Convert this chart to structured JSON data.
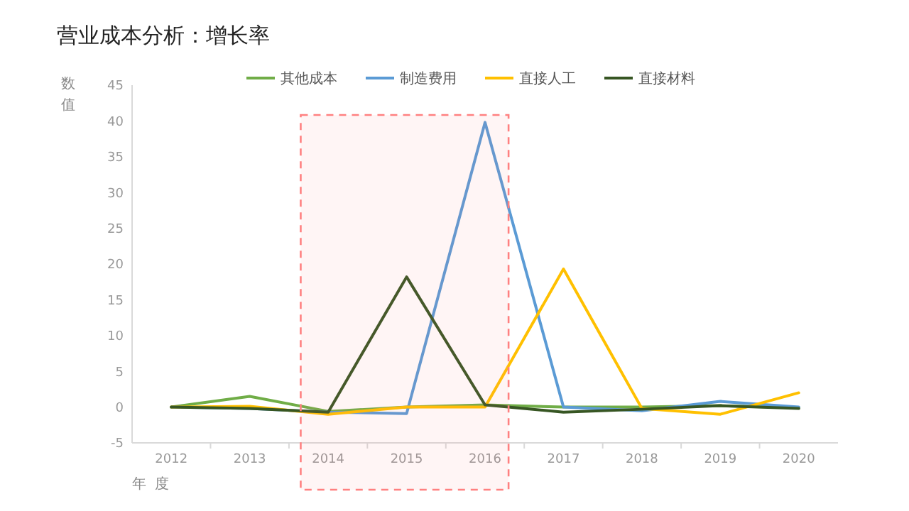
{
  "chart_data": {
    "type": "line",
    "title": "营业成本分析：增长率",
    "xlabel": "年度",
    "ylabel": "数值",
    "x": [
      2012,
      2013,
      2014,
      2015,
      2016,
      2017,
      2018,
      2019,
      2020
    ],
    "xlim": [
      2011.5,
      2020.5
    ],
    "xticks": [
      2012,
      2013,
      2014,
      2015,
      2016,
      2017,
      2018,
      2019,
      2020
    ],
    "ylim": [
      -5,
      45
    ],
    "yticks": [
      -5,
      0,
      5,
      10,
      15,
      20,
      25,
      30,
      35,
      40,
      45
    ],
    "grid": false,
    "legend": "top",
    "marker": "none",
    "line_style": "solid",
    "series": [
      {
        "name": "其他成本",
        "color": "#70ad47",
        "values": [
          0,
          1.5,
          -0.6,
          0,
          0.3,
          0,
          0,
          0.2,
          -0.1
        ]
      },
      {
        "name": "制造费用",
        "color": "#5b9bd5",
        "values": [
          0,
          -0.2,
          -0.7,
          -0.9,
          39.8,
          0,
          -0.5,
          0.8,
          0
        ]
      },
      {
        "name": "直接人工",
        "color": "#ffc000",
        "values": [
          0,
          0.1,
          -1,
          0,
          0,
          19.3,
          -0.2,
          -1,
          2
        ]
      },
      {
        "name": "直接材料",
        "color": "#375623",
        "values": [
          0,
          -0.2,
          -0.7,
          18.2,
          0.3,
          -0.7,
          -0.3,
          0.2,
          -0.2
        ]
      }
    ],
    "bands": [
      {
        "axis": "x",
        "from": 2013.65,
        "to": 2016.3,
        "color": "#ff8080"
      }
    ]
  }
}
